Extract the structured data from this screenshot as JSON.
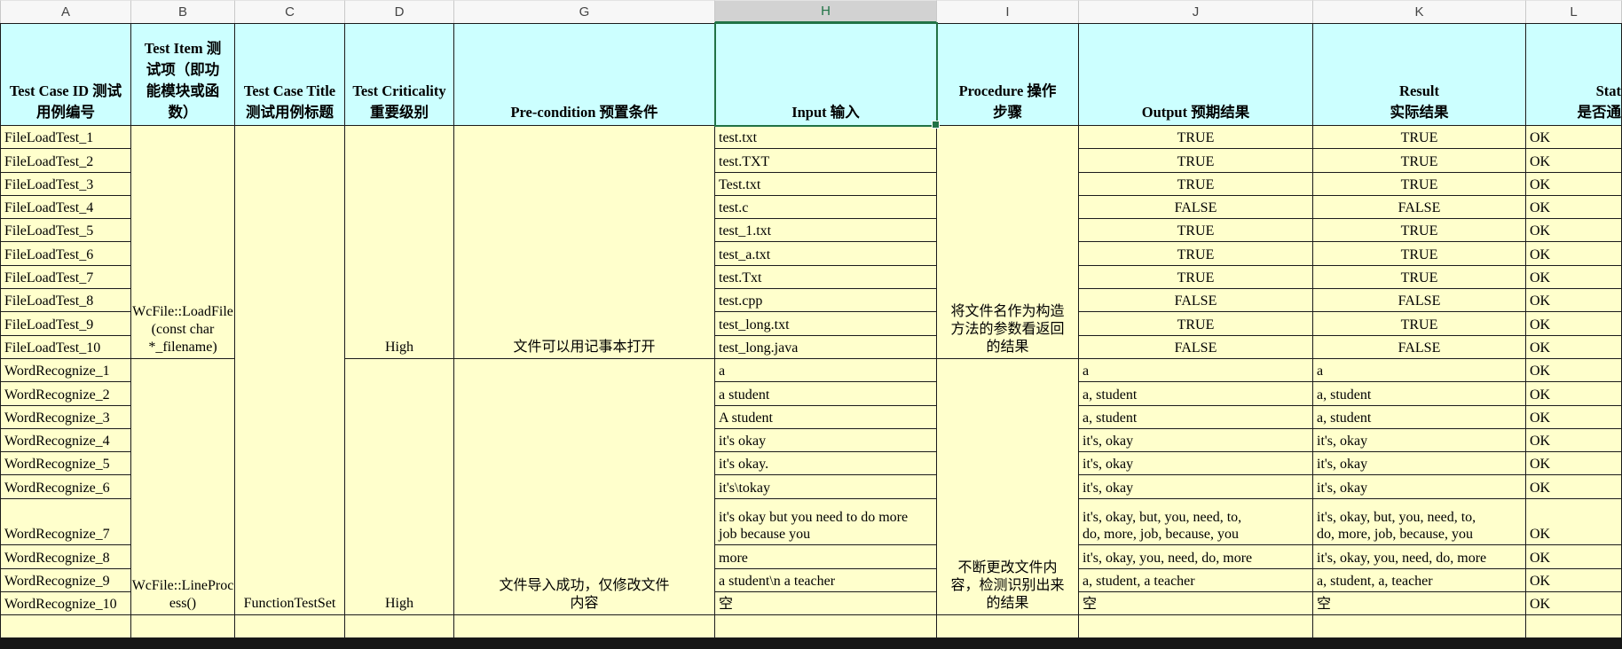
{
  "selection": {
    "column_letter": "H"
  },
  "columns": [
    "A",
    "B",
    "C",
    "D",
    "G",
    "H",
    "I",
    "J",
    "K",
    "L"
  ],
  "headers": {
    "a": "Test Case ID 测试\n用例编号",
    "b": "Test Item 测\n试项（即功\n能模块或函\n数）",
    "c": "Test Case Title\n测试用例标题",
    "d": "Test Criticality\n重要级别",
    "g": "Pre-condition 预置条件",
    "h": "Input 输入",
    "i": "Procedure 操作\n步骤",
    "j": "Output 预期结果",
    "k": "Result\n实际结果",
    "l": "Stat\n是否通"
  },
  "shared": {
    "test_case_title": "FunctionTestSet"
  },
  "groups": [
    {
      "test_item": "WcFile::LoadFile\n(const char\n*_filename)",
      "criticality": "High",
      "precondition": "文件可以用记事本打开",
      "procedure": "将文件名作为构造\n方法的参数看返回\n的结果",
      "rows": [
        {
          "id": "FileLoadTest_1",
          "input": "test.txt",
          "output": "TRUE",
          "result": "TRUE",
          "status": "OK"
        },
        {
          "id": "FileLoadTest_2",
          "input": "test.TXT",
          "output": "TRUE",
          "result": "TRUE",
          "status": "OK"
        },
        {
          "id": "FileLoadTest_3",
          "input": "Test.txt",
          "output": "TRUE",
          "result": "TRUE",
          "status": "OK"
        },
        {
          "id": "FileLoadTest_4",
          "input": "test.c",
          "output": "FALSE",
          "result": "FALSE",
          "status": "OK"
        },
        {
          "id": "FileLoadTest_5",
          "input": "test_1.txt",
          "output": "TRUE",
          "result": "TRUE",
          "status": "OK"
        },
        {
          "id": "FileLoadTest_6",
          "input": "test_a.txt",
          "output": "TRUE",
          "result": "TRUE",
          "status": "OK"
        },
        {
          "id": "FileLoadTest_7",
          "input": "test.Txt",
          "output": "TRUE",
          "result": "TRUE",
          "status": "OK"
        },
        {
          "id": "FileLoadTest_8",
          "input": "test.cpp",
          "output": "FALSE",
          "result": "FALSE",
          "status": "OK"
        },
        {
          "id": "FileLoadTest_9",
          "input": "test_long.txt",
          "output": "TRUE",
          "result": "TRUE",
          "status": "OK"
        },
        {
          "id": "FileLoadTest_10",
          "input": "test_long.java",
          "output": "FALSE",
          "result": "FALSE",
          "status": "OK"
        }
      ]
    },
    {
      "test_item": "WcFile::LineProc\ness()",
      "criticality": "High",
      "precondition": "文件导入成功，仅修改文件\n内容",
      "procedure": "不断更改文件内\n容，检测识别出来\n的结果",
      "rows": [
        {
          "id": "WordRecognize_1",
          "input": "a",
          "output": "a",
          "result": "a",
          "status": "OK"
        },
        {
          "id": "WordRecognize_2",
          "input": "a student",
          "output": "a, student",
          "result": "a, student",
          "status": "OK"
        },
        {
          "id": "WordRecognize_3",
          "input": "A student",
          "output": "a, student",
          "result": "a, student",
          "status": "OK"
        },
        {
          "id": "WordRecognize_4",
          "input": "it's okay",
          "output": "it's, okay",
          "result": "it's, okay",
          "status": "OK"
        },
        {
          "id": "WordRecognize_5",
          "input": "it's okay.",
          "output": "it's, okay",
          "result": "it's, okay",
          "status": "OK"
        },
        {
          "id": "WordRecognize_6",
          "input": "it's\\tokay",
          "output": "it's, okay",
          "result": "it's, okay",
          "status": "OK"
        },
        {
          "id": "WordRecognize_7",
          "input": "it's okay but you need to do more\njob because you",
          "output": "it's, okay, but, you, need, to,\ndo, more, job, because, you",
          "result": "it's, okay, but, you, need, to,\ndo, more, job, because, you",
          "status": "OK",
          "tall": true
        },
        {
          "id": "WordRecognize_8",
          "input": "more",
          "output": "it's, okay, you, need, do, more",
          "result": "it's, okay, you, need, do, more",
          "status": "OK"
        },
        {
          "id": "WordRecognize_9",
          "input": "a student\\n a teacher",
          "output": "a, student, a teacher",
          "result": "a, student, a, teacher",
          "status": "OK"
        },
        {
          "id": "WordRecognize_10",
          "input": "空",
          "output": "空",
          "result": "空",
          "status": "OK"
        }
      ]
    }
  ],
  "colors": {
    "header_fill": "#CCFFFF",
    "data_fill": "#FFFFCC",
    "selection_green": "#217346"
  }
}
